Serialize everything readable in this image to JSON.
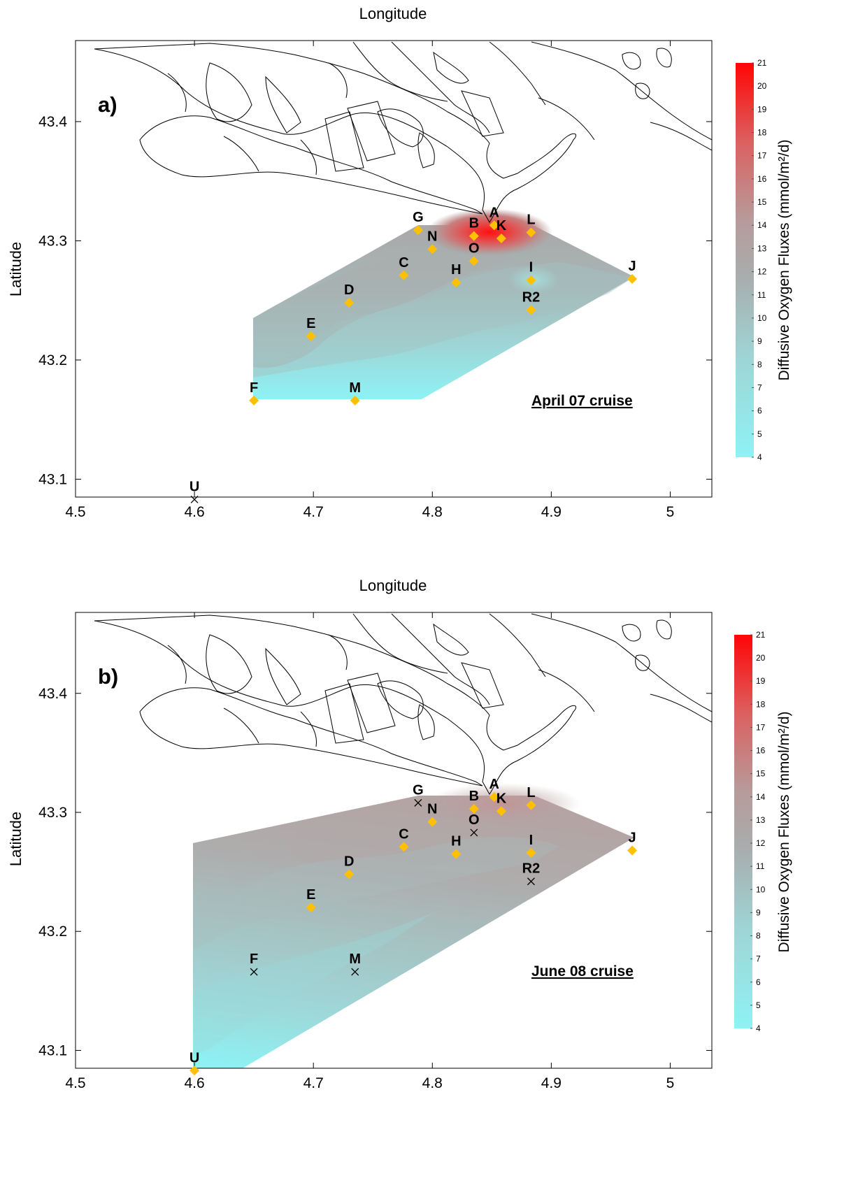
{
  "colorbar": {
    "label": "Diffusive Oxygen Fluxes (mmol/m²/d)",
    "min": 4,
    "max": 21,
    "ticks": [
      4,
      5,
      6,
      7,
      8,
      9,
      10,
      11,
      12,
      13,
      14,
      15,
      16,
      17,
      18,
      19,
      20,
      21
    ],
    "color_low": "#8ef2f4",
    "color_mid": "#a0a0a0",
    "color_high": "#ff0000"
  },
  "axes": {
    "x_title": "Longitude",
    "y_title": "Latitude",
    "x_ticks": [
      "4.5",
      "4.6",
      "4.7",
      "4.8",
      "4.9",
      "5"
    ],
    "y_ticks": [
      "43.1",
      "43.2",
      "43.3",
      "43.4"
    ],
    "x_range": [
      4.5,
      5.035
    ],
    "y_range": [
      43.085,
      43.468
    ]
  },
  "panels": [
    {
      "letter": "a)",
      "cruise": "April 07 cruise",
      "stations": [
        {
          "id": "G",
          "lon": 4.788,
          "lat": 43.309,
          "symbol": "diamond"
        },
        {
          "id": "A",
          "lon": 4.852,
          "lat": 43.313,
          "symbol": "diamond"
        },
        {
          "id": "B",
          "lon": 4.835,
          "lat": 43.304,
          "symbol": "diamond"
        },
        {
          "id": "K",
          "lon": 4.858,
          "lat": 43.302,
          "symbol": "diamond"
        },
        {
          "id": "L",
          "lon": 4.883,
          "lat": 43.307,
          "symbol": "diamond"
        },
        {
          "id": "N",
          "lon": 4.8,
          "lat": 43.293,
          "symbol": "diamond"
        },
        {
          "id": "O",
          "lon": 4.835,
          "lat": 43.283,
          "symbol": "diamond"
        },
        {
          "id": "C",
          "lon": 4.776,
          "lat": 43.271,
          "symbol": "diamond"
        },
        {
          "id": "H",
          "lon": 4.82,
          "lat": 43.265,
          "symbol": "diamond"
        },
        {
          "id": "I",
          "lon": 4.883,
          "lat": 43.267,
          "symbol": "diamond"
        },
        {
          "id": "J",
          "lon": 4.968,
          "lat": 43.268,
          "symbol": "diamond"
        },
        {
          "id": "D",
          "lon": 4.73,
          "lat": 43.248,
          "symbol": "diamond"
        },
        {
          "id": "R2",
          "lon": 4.883,
          "lat": 43.242,
          "symbol": "diamond"
        },
        {
          "id": "E",
          "lon": 4.698,
          "lat": 43.22,
          "symbol": "diamond"
        },
        {
          "id": "F",
          "lon": 4.65,
          "lat": 43.166,
          "symbol": "diamond"
        },
        {
          "id": "M",
          "lon": 4.735,
          "lat": 43.166,
          "symbol": "diamond"
        },
        {
          "id": "U",
          "lon": 4.6,
          "lat": 43.083,
          "symbol": "cross"
        }
      ]
    },
    {
      "letter": "b)",
      "cruise": "June 08 cruise",
      "stations": [
        {
          "id": "G",
          "lon": 4.788,
          "lat": 43.308,
          "symbol": "cross"
        },
        {
          "id": "A",
          "lon": 4.852,
          "lat": 43.313,
          "symbol": "diamond"
        },
        {
          "id": "B",
          "lon": 4.835,
          "lat": 43.303,
          "symbol": "diamond"
        },
        {
          "id": "K",
          "lon": 4.858,
          "lat": 43.301,
          "symbol": "diamond"
        },
        {
          "id": "L",
          "lon": 4.883,
          "lat": 43.306,
          "symbol": "diamond"
        },
        {
          "id": "N",
          "lon": 4.8,
          "lat": 43.292,
          "symbol": "diamond"
        },
        {
          "id": "O",
          "lon": 4.835,
          "lat": 43.283,
          "symbol": "cross"
        },
        {
          "id": "C",
          "lon": 4.776,
          "lat": 43.271,
          "symbol": "diamond"
        },
        {
          "id": "H",
          "lon": 4.82,
          "lat": 43.265,
          "symbol": "diamond"
        },
        {
          "id": "I",
          "lon": 4.883,
          "lat": 43.266,
          "symbol": "diamond"
        },
        {
          "id": "J",
          "lon": 4.968,
          "lat": 43.268,
          "symbol": "diamond"
        },
        {
          "id": "D",
          "lon": 4.73,
          "lat": 43.248,
          "symbol": "diamond"
        },
        {
          "id": "R2",
          "lon": 4.883,
          "lat": 43.242,
          "symbol": "cross"
        },
        {
          "id": "E",
          "lon": 4.698,
          "lat": 43.22,
          "symbol": "diamond"
        },
        {
          "id": "F",
          "lon": 4.65,
          "lat": 43.166,
          "symbol": "cross"
        },
        {
          "id": "M",
          "lon": 4.735,
          "lat": 43.166,
          "symbol": "cross"
        },
        {
          "id": "U",
          "lon": 4.6,
          "lat": 43.083,
          "symbol": "diamond"
        }
      ]
    }
  ]
}
